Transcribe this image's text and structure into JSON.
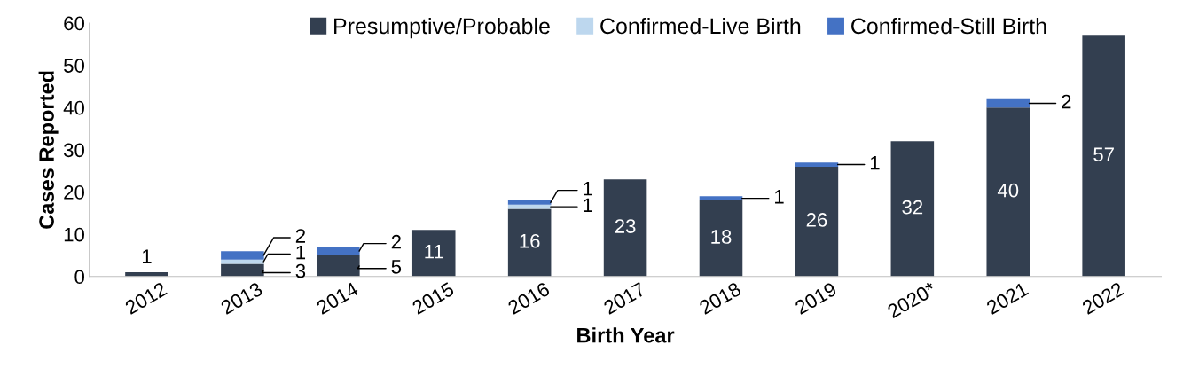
{
  "chart_data": {
    "type": "bar",
    "stacked": true,
    "xlabel": "Birth Year",
    "ylabel": "Cases Reported",
    "categories": [
      "2012",
      "2013",
      "2014",
      "2015",
      "2016",
      "2017",
      "2018",
      "2019",
      "2020*",
      "2021",
      "2022"
    ],
    "ylim": [
      0,
      60
    ],
    "yticks": [
      0,
      10,
      20,
      30,
      40,
      50,
      60
    ],
    "grid": false,
    "legend": "top",
    "series": [
      {
        "name": "Presumptive/Probable",
        "color": "#333f50",
        "values": [
          1,
          3,
          5,
          11,
          16,
          23,
          18,
          26,
          32,
          40,
          57
        ],
        "value_labels": [
          "1",
          "3",
          "5",
          "11",
          "16",
          "23",
          "18",
          "26",
          "32",
          "40",
          "57"
        ]
      },
      {
        "name": "Confirmed-Live Birth",
        "color": "#bdd7ee",
        "values": [
          0,
          1,
          0,
          0,
          1,
          0,
          0,
          0,
          0,
          0,
          0
        ],
        "value_labels": [
          null,
          "1",
          null,
          null,
          "1",
          null,
          null,
          null,
          null,
          null,
          null
        ]
      },
      {
        "name": "Confirmed-Still Birth",
        "color": "#4472c4",
        "values": [
          0,
          2,
          2,
          0,
          1,
          0,
          1,
          1,
          0,
          2,
          0
        ],
        "value_labels": [
          null,
          "2",
          "2",
          null,
          "1",
          null,
          "1",
          "1",
          null,
          "2",
          null
        ]
      }
    ]
  }
}
